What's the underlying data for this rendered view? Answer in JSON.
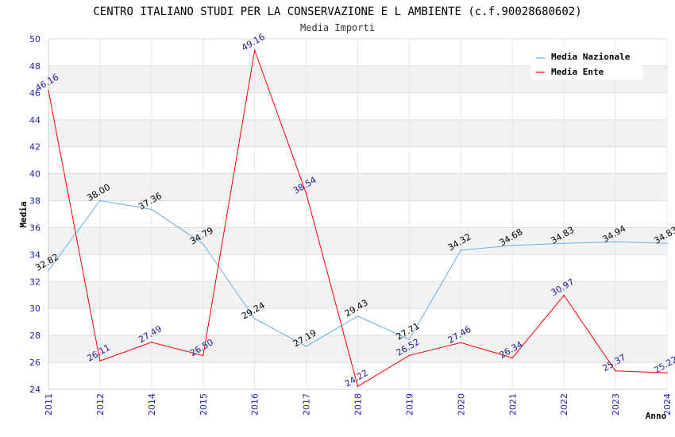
{
  "chart_data": {
    "type": "line",
    "title": "CENTRO ITALIANO STUDI PER LA CONSERVAZIONE E L AMBIENTE (c.f.90028680602)",
    "subtitle": "Media Importi",
    "xlabel": "Anno",
    "ylabel": "Media",
    "categories": [
      "2011",
      "2012",
      "2014",
      "2015",
      "2016",
      "2017",
      "2018",
      "2019",
      "2020",
      "2021",
      "2022",
      "2023",
      "2024"
    ],
    "ylim": [
      24,
      50
    ],
    "yticks": [
      24,
      26,
      28,
      30,
      32,
      34,
      36,
      38,
      40,
      42,
      44,
      46,
      48,
      50
    ],
    "grid": true,
    "legend_position": "top-right",
    "series": [
      {
        "name": "Media Nazionale",
        "color": "#6aaee6",
        "label_color": "#000000",
        "values": [
          32.82,
          38.0,
          37.36,
          34.79,
          29.24,
          27.19,
          29.43,
          27.71,
          34.32,
          34.68,
          34.83,
          34.94,
          34.83
        ],
        "labels": [
          "32.82",
          "38.00",
          "37.36",
          "34.79",
          "29.24",
          "27.19",
          "29.43",
          "27.71",
          "34.32",
          "34.68",
          "34.83",
          "34.94",
          "34.83"
        ]
      },
      {
        "name": "Media Ente",
        "color": "#ff0000",
        "label_color": "#1a1a9a",
        "values": [
          46.16,
          26.11,
          27.49,
          26.5,
          49.16,
          38.54,
          24.22,
          26.52,
          27.46,
          26.34,
          30.97,
          25.37,
          25.22
        ],
        "labels": [
          "46.16",
          "26.11",
          "27.49",
          "26.50",
          "49.16",
          "38.54",
          "24.22",
          "26.52",
          "27.46",
          "26.34",
          "30.97",
          "25.37",
          "25.22"
        ]
      }
    ]
  }
}
